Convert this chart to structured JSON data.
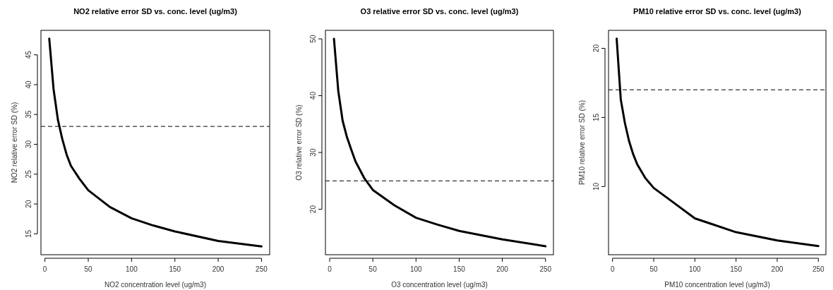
{
  "chart_data": [
    {
      "type": "line",
      "title": "NO2 relative error SD vs. conc. level (ug/m3)",
      "xlabel": "NO2 concentration level (ug/m3)",
      "ylabel": "NO2 relative error SD (%)",
      "xlim": [
        -4.6,
        259.4
      ],
      "xticks": [
        0,
        50,
        100,
        150,
        200,
        250
      ],
      "ylim": [
        11.5,
        49.1
      ],
      "yticks": [
        15,
        20,
        25,
        30,
        35,
        40,
        45
      ],
      "x": [
        5,
        10,
        15,
        20,
        25,
        30,
        40,
        50,
        75,
        100,
        125,
        150,
        200,
        250
      ],
      "series": [
        {
          "color": "#000000",
          "values": [
            47.7,
            39.2,
            34.1,
            30.9,
            28.3,
            26.4,
            24.2,
            22.3,
            19.5,
            17.6,
            16.4,
            15.4,
            13.8,
            12.9
          ]
        }
      ],
      "ref_lines": [
        {
          "axis": "y",
          "value": 33,
          "line_style": "dashed",
          "color": "#000000"
        }
      ]
    },
    {
      "type": "line",
      "title": "O3 relative error SD vs. conc. level (ug/m3)",
      "xlabel": "O3 concentration level (ug/m3)",
      "ylabel": "O3 relative error SD (%)",
      "xlim": [
        -4.9,
        259.2
      ],
      "xticks": [
        0,
        50,
        100,
        150,
        200,
        250
      ],
      "ylim": [
        12.0,
        51.5
      ],
      "yticks": [
        20,
        30,
        40,
        50
      ],
      "x": [
        5,
        10,
        15,
        20,
        25,
        30,
        40,
        50,
        75,
        100,
        125,
        150,
        200,
        250
      ],
      "series": [
        {
          "color": "#000000",
          "values": [
            50,
            40.8,
            35.6,
            32.7,
            30.5,
            28.4,
            25.5,
            23.4,
            20.7,
            18.5,
            17.3,
            16.2,
            14.7,
            13.5
          ]
        }
      ],
      "ref_lines": [
        {
          "axis": "y",
          "value": 25,
          "line_style": "dashed",
          "color": "#000000"
        }
      ]
    },
    {
      "type": "line",
      "title": "PM10 relative error SD vs. conc. level (ug/m3)",
      "xlabel": "PM10 concentration level (ug/m3)",
      "ylabel": "PM10 relative error SD (%)",
      "xlim": [
        -4.9,
        259.2
      ],
      "xticks": [
        0,
        50,
        100,
        150,
        200,
        250
      ],
      "ylim": [
        5.07,
        21.3
      ],
      "yticks": [
        10,
        15,
        20
      ],
      "x": [
        5,
        10,
        15,
        20,
        25,
        30,
        40,
        50,
        75,
        100,
        125,
        150,
        200,
        250
      ],
      "series": [
        {
          "color": "#000000",
          "values": [
            20.7,
            16.3,
            14.6,
            13.3,
            12.35,
            11.6,
            10.6,
            9.9,
            8.8,
            7.7,
            7.2,
            6.7,
            6.1,
            5.7
          ]
        }
      ],
      "ref_lines": [
        {
          "axis": "y",
          "value": 17,
          "line_style": "dashed",
          "color": "#000000"
        }
      ]
    }
  ]
}
